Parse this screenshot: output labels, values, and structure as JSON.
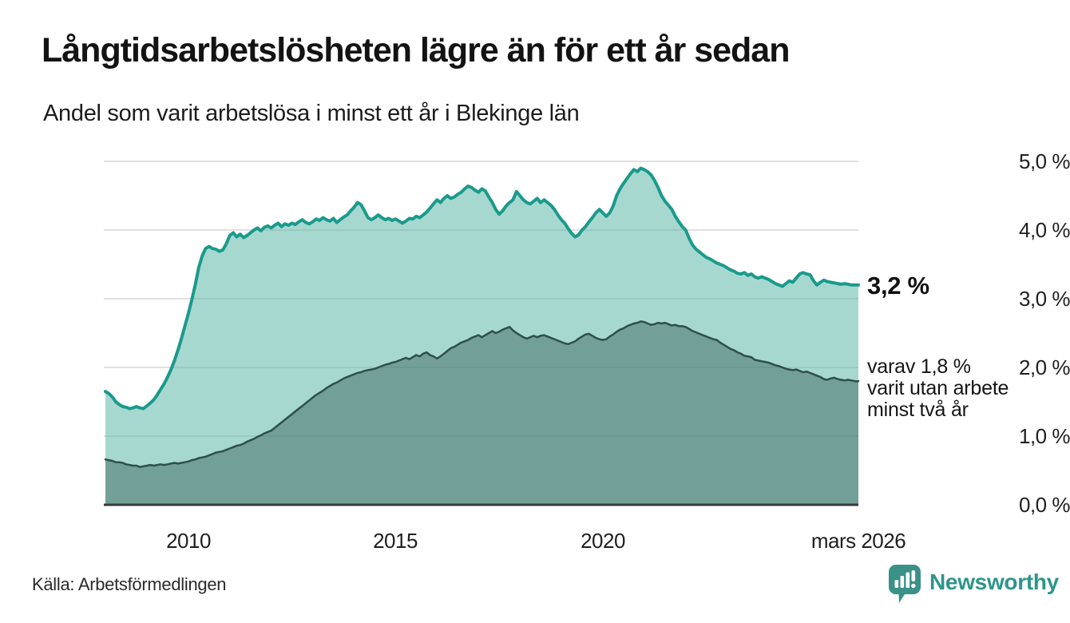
{
  "chart_data": {
    "type": "area",
    "title": "Långtidsarbetslösheten lägre än för ett år sedan",
    "subtitle": "Andel som varit arbetslösa i minst ett år i Blekinge län",
    "x_domain": [
      2008.0,
      2026.1667
    ],
    "ylim": [
      0,
      5
    ],
    "grid": true,
    "legend_position": "end-of-line-labels",
    "y_ticks": [
      {
        "label": "0,0 %",
        "value": 0.0
      },
      {
        "label": "1,0 %",
        "value": 1.0
      },
      {
        "label": "2,0 %",
        "value": 2.0
      },
      {
        "label": "3,0 %",
        "value": 3.0
      },
      {
        "label": "4,0 %",
        "value": 4.0
      },
      {
        "label": "5,0 %",
        "value": 5.0
      }
    ],
    "x_ticks": [
      {
        "label": "2010",
        "x": 2010
      },
      {
        "label": "2015",
        "x": 2015
      },
      {
        "label": "2020",
        "x": 2020
      },
      {
        "label": "mars 2026",
        "x": 2026.1667
      }
    ],
    "colors": {
      "line_main": "#1a9a8c",
      "fill_main": "rgba(94,184,169,0.55)",
      "line_sub": "#2e4f49",
      "fill_sub": "rgba(52,92,85,0.45)",
      "gridline": "#e0e0e0",
      "axis": "#3a3a3a"
    },
    "series": [
      {
        "end_label": "3,2 %",
        "end_value": 3.2,
        "line_width": 4,
        "values": [
          1.65,
          1.62,
          1.57,
          1.5,
          1.46,
          1.43,
          1.42,
          1.4,
          1.41,
          1.43,
          1.41,
          1.4,
          1.44,
          1.48,
          1.53,
          1.6,
          1.68,
          1.76,
          1.86,
          1.97,
          2.1,
          2.25,
          2.42,
          2.6,
          2.78,
          2.98,
          3.2,
          3.45,
          3.62,
          3.73,
          3.76,
          3.73,
          3.72,
          3.69,
          3.71,
          3.8,
          3.92,
          3.96,
          3.9,
          3.94,
          3.89,
          3.92,
          3.96,
          4.0,
          4.03,
          3.99,
          4.04,
          4.06,
          4.03,
          4.07,
          4.1,
          4.05,
          4.09,
          4.07,
          4.1,
          4.08,
          4.12,
          4.15,
          4.11,
          4.09,
          4.12,
          4.16,
          4.14,
          4.18,
          4.15,
          4.13,
          4.17,
          4.11,
          4.15,
          4.19,
          4.22,
          4.28,
          4.33,
          4.4,
          4.37,
          4.28,
          4.18,
          4.15,
          4.18,
          4.22,
          4.18,
          4.15,
          4.17,
          4.14,
          4.16,
          4.13,
          4.1,
          4.13,
          4.17,
          4.16,
          4.2,
          4.18,
          4.22,
          4.26,
          4.32,
          4.38,
          4.44,
          4.4,
          4.46,
          4.5,
          4.46,
          4.48,
          4.52,
          4.55,
          4.6,
          4.64,
          4.62,
          4.58,
          4.55,
          4.6,
          4.57,
          4.48,
          4.4,
          4.3,
          4.23,
          4.28,
          4.35,
          4.4,
          4.44,
          4.56,
          4.5,
          4.44,
          4.4,
          4.38,
          4.42,
          4.46,
          4.4,
          4.44,
          4.4,
          4.36,
          4.3,
          4.22,
          4.15,
          4.1,
          4.02,
          3.95,
          3.9,
          3.93,
          4.0,
          4.05,
          4.12,
          4.18,
          4.25,
          4.3,
          4.25,
          4.2,
          4.25,
          4.35,
          4.5,
          4.6,
          4.68,
          4.75,
          4.82,
          4.88,
          4.85,
          4.9,
          4.88,
          4.85,
          4.8,
          4.72,
          4.62,
          4.5,
          4.42,
          4.36,
          4.3,
          4.2,
          4.12,
          4.05,
          4.0,
          3.88,
          3.78,
          3.72,
          3.68,
          3.64,
          3.6,
          3.58,
          3.55,
          3.52,
          3.5,
          3.48,
          3.45,
          3.42,
          3.4,
          3.37,
          3.36,
          3.38,
          3.34,
          3.36,
          3.32,
          3.3,
          3.32,
          3.3,
          3.28,
          3.25,
          3.22,
          3.2,
          3.18,
          3.22,
          3.26,
          3.24,
          3.3,
          3.36,
          3.38,
          3.36,
          3.35,
          3.26,
          3.2,
          3.24,
          3.27,
          3.25,
          3.24,
          3.23,
          3.22,
          3.21,
          3.22,
          3.21,
          3.2,
          3.2,
          3.2
        ]
      },
      {
        "note_lines": [
          "varav 1,8 %",
          "varit utan arbete",
          "minst två år"
        ],
        "end_value": 1.8,
        "line_width": 2.5,
        "values": [
          0.66,
          0.65,
          0.64,
          0.62,
          0.62,
          0.61,
          0.59,
          0.58,
          0.57,
          0.57,
          0.55,
          0.56,
          0.57,
          0.58,
          0.57,
          0.58,
          0.59,
          0.58,
          0.59,
          0.6,
          0.61,
          0.6,
          0.61,
          0.62,
          0.63,
          0.65,
          0.66,
          0.68,
          0.69,
          0.7,
          0.72,
          0.74,
          0.76,
          0.77,
          0.78,
          0.8,
          0.82,
          0.84,
          0.86,
          0.87,
          0.89,
          0.92,
          0.94,
          0.96,
          0.99,
          1.01,
          1.04,
          1.06,
          1.08,
          1.12,
          1.16,
          1.2,
          1.24,
          1.28,
          1.32,
          1.36,
          1.4,
          1.44,
          1.48,
          1.52,
          1.56,
          1.6,
          1.63,
          1.66,
          1.7,
          1.73,
          1.76,
          1.78,
          1.81,
          1.84,
          1.86,
          1.88,
          1.9,
          1.92,
          1.93,
          1.95,
          1.96,
          1.97,
          1.98,
          2.0,
          2.02,
          2.04,
          2.05,
          2.07,
          2.08,
          2.1,
          2.12,
          2.14,
          2.12,
          2.15,
          2.18,
          2.16,
          2.2,
          2.22,
          2.18,
          2.16,
          2.13,
          2.16,
          2.2,
          2.24,
          2.28,
          2.3,
          2.33,
          2.36,
          2.38,
          2.4,
          2.43,
          2.45,
          2.47,
          2.44,
          2.47,
          2.5,
          2.53,
          2.5,
          2.52,
          2.55,
          2.57,
          2.59,
          2.54,
          2.5,
          2.47,
          2.44,
          2.42,
          2.44,
          2.46,
          2.44,
          2.46,
          2.47,
          2.45,
          2.43,
          2.41,
          2.39,
          2.37,
          2.35,
          2.34,
          2.36,
          2.38,
          2.42,
          2.45,
          2.48,
          2.49,
          2.46,
          2.43,
          2.41,
          2.4,
          2.41,
          2.45,
          2.48,
          2.52,
          2.55,
          2.57,
          2.6,
          2.62,
          2.64,
          2.65,
          2.67,
          2.66,
          2.64,
          2.62,
          2.63,
          2.65,
          2.64,
          2.65,
          2.63,
          2.61,
          2.62,
          2.6,
          2.6,
          2.59,
          2.56,
          2.53,
          2.51,
          2.49,
          2.47,
          2.45,
          2.43,
          2.41,
          2.4,
          2.36,
          2.33,
          2.3,
          2.27,
          2.25,
          2.22,
          2.2,
          2.17,
          2.16,
          2.15,
          2.11,
          2.1,
          2.09,
          2.08,
          2.07,
          2.05,
          2.03,
          2.02,
          2.0,
          1.98,
          1.97,
          1.96,
          1.97,
          1.95,
          1.93,
          1.94,
          1.92,
          1.9,
          1.88,
          1.86,
          1.83,
          1.82,
          1.84,
          1.85,
          1.83,
          1.82,
          1.81,
          1.82,
          1.81,
          1.8,
          1.8
        ]
      }
    ]
  },
  "footer": {
    "source": "Källa: Arbetsförmedlingen",
    "brand": "Newsworthy"
  }
}
